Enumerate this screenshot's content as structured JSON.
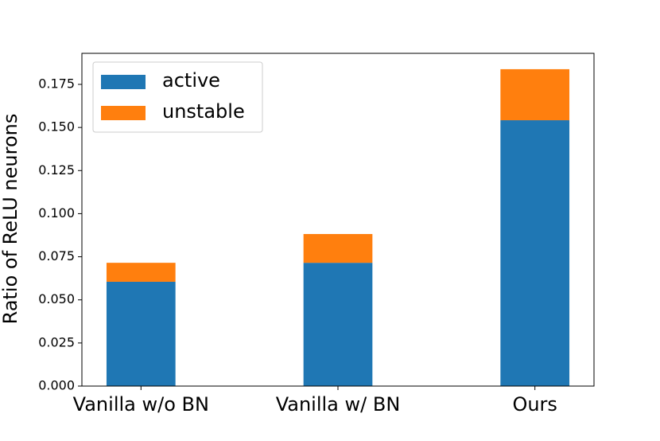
{
  "chart_data": {
    "type": "stacked_bar",
    "ylabel": "Ratio of ReLU neurons",
    "categories": [
      "Vanilla w/o BN",
      "Vanilla w/ BN",
      "Ours"
    ],
    "series": [
      {
        "name": "active",
        "color": "#1f77b4",
        "values": [
          0.0605,
          0.0715,
          0.1542
        ]
      },
      {
        "name": "unstable",
        "color": "#ff7f0e",
        "values": [
          0.011,
          0.0167,
          0.0296
        ]
      }
    ],
    "ylim": [
      0,
      0.193
    ],
    "yticks": [
      {
        "value": 0,
        "label": "0.000"
      },
      0.025,
      {
        "value": 0.05,
        "label": "0.050"
      },
      0.075,
      {
        "value": 0.1,
        "label": "0.100"
      },
      0.125,
      {
        "value": 0.15,
        "label": "0.150"
      },
      0.175
    ],
    "legend": "upper left"
  }
}
